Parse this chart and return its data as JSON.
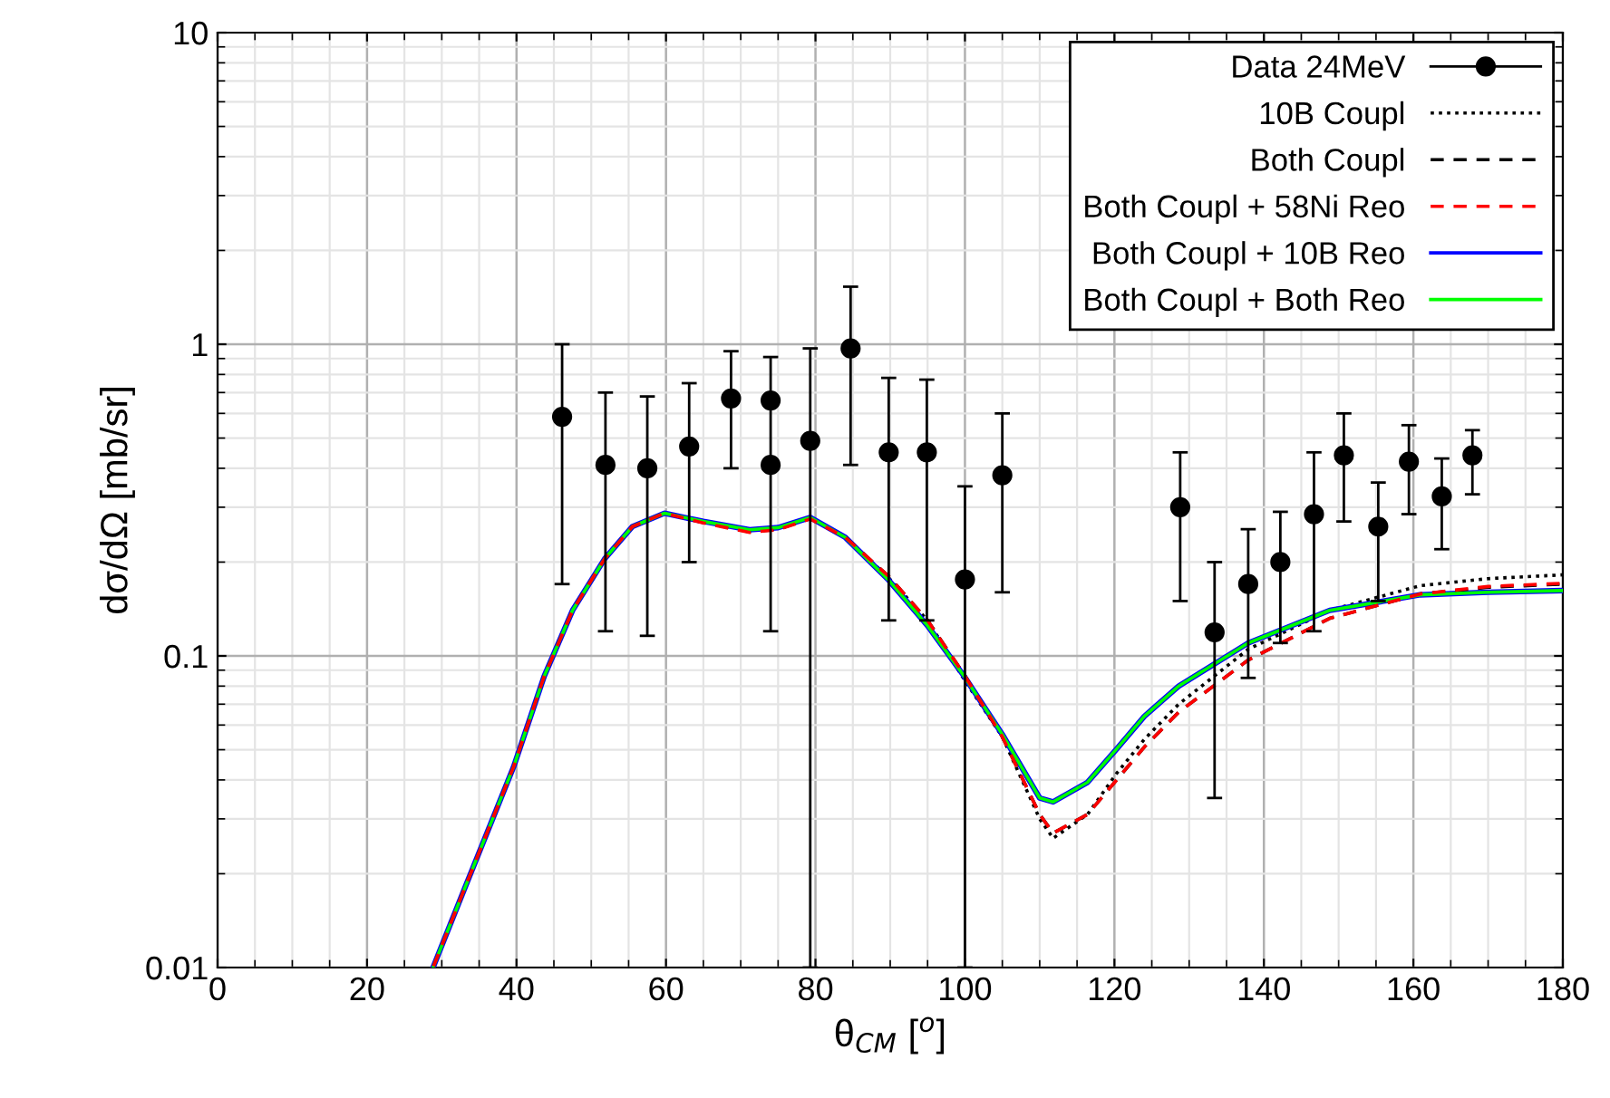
{
  "chart_data": {
    "type": "line",
    "xlabel": "θ$_{CM}$ [$^{o}$]",
    "ylabel": "dσ/dΩ [mb/sr]",
    "xlim": [
      0,
      180
    ],
    "xticks": [
      0,
      20,
      40,
      60,
      80,
      100,
      120,
      140,
      160,
      180
    ],
    "ylim": [
      0.01,
      10
    ],
    "yticks": [
      0.01,
      0.1,
      1,
      10
    ],
    "log": "y",
    "grid": true,
    "legend": "top right",
    "series": [
      {
        "name": "Data 24MeV",
        "type": "scatter",
        "marker": "circle",
        "color": "#000000",
        "x": [
          46.1,
          51.9,
          57.5,
          63.1,
          68.7,
          74.0,
          74.0,
          79.3,
          84.7,
          89.8,
          94.9,
          100.0,
          105.0,
          128.8,
          133.4,
          137.9,
          142.2,
          146.7,
          150.7,
          155.3,
          159.4,
          163.8,
          167.9
        ],
        "values": [
          0.585,
          0.41,
          0.4,
          0.47,
          0.67,
          0.66,
          0.41,
          0.49,
          0.97,
          0.45,
          0.45,
          0.176,
          0.38,
          0.3,
          0.119,
          0.17,
          0.2,
          0.285,
          0.44,
          0.26,
          0.42,
          0.325,
          0.44
        ],
        "errors": [
          [
            0.17,
            1.0
          ],
          [
            0.12,
            0.7
          ],
          [
            0.116,
            0.68
          ],
          [
            0.2,
            0.75
          ],
          [
            0.4,
            0.95
          ],
          [
            0.12,
            0.91
          ],
          null,
          [
            0.01,
            0.97
          ],
          [
            0.41,
            1.53
          ],
          [
            0.13,
            0.78
          ],
          [
            0.13,
            0.77
          ],
          [
            0.01,
            0.35
          ],
          [
            0.16,
            0.6
          ],
          [
            0.15,
            0.45
          ],
          [
            0.035,
            0.2
          ],
          [
            0.085,
            0.255
          ],
          [
            0.11,
            0.29
          ],
          [
            0.12,
            0.45
          ],
          [
            0.27,
            0.6
          ],
          [
            0.15,
            0.36
          ],
          [
            0.285,
            0.55
          ],
          [
            0.22,
            0.43
          ],
          [
            0.33,
            0.53
          ]
        ]
      },
      {
        "name": "10B Coupl",
        "line_style": "dotted",
        "color": "#000000",
        "x": [
          28.9,
          33,
          39.6,
          43.7,
          47.5,
          51.8,
          55.5,
          59.8,
          65,
          71.2,
          75,
          79.3,
          84,
          89.8,
          95,
          99.9,
          105,
          110,
          111.8,
          116.4,
          120.3,
          124,
          128.6,
          137.9,
          148.8,
          160.9,
          170,
          180
        ],
        "values": [
          0.0101,
          0.0178,
          0.044,
          0.086,
          0.14,
          0.205,
          0.26,
          0.287,
          0.27,
          0.254,
          0.258,
          0.278,
          0.24,
          0.178,
          0.13,
          0.084,
          0.055,
          0.03,
          0.026,
          0.031,
          0.042,
          0.054,
          0.07,
          0.105,
          0.14,
          0.168,
          0.177,
          0.182
        ]
      },
      {
        "name": "Both Coupl",
        "line_style": "dashed",
        "color": "#000000",
        "x": [
          28.9,
          33,
          39.6,
          43.7,
          47.5,
          51.8,
          55.5,
          59.8,
          65,
          71.2,
          75,
          79.3,
          84,
          89.8,
          95,
          99.9,
          105,
          110,
          111.8,
          116.4,
          120.3,
          124,
          128.6,
          137.9,
          148.8,
          160.9,
          170,
          180
        ],
        "values": [
          0.0101,
          0.0178,
          0.044,
          0.086,
          0.14,
          0.205,
          0.26,
          0.287,
          0.268,
          0.25,
          0.255,
          0.276,
          0.24,
          0.18,
          0.13,
          0.087,
          0.055,
          0.031,
          0.027,
          0.031,
          0.04,
          0.051,
          0.066,
          0.097,
          0.132,
          0.158,
          0.166,
          0.17
        ]
      },
      {
        "name": "Both Coupl + 58Ni Reo",
        "line_style": "dashed",
        "color": "#ff0000",
        "x": [
          28.9,
          33,
          39.6,
          43.7,
          47.5,
          51.8,
          55.5,
          59.8,
          65,
          71.2,
          75,
          79.3,
          84,
          89.8,
          95,
          99.9,
          105,
          110,
          111.8,
          116.4,
          120.3,
          124,
          128.6,
          137.9,
          148.8,
          160.9,
          170,
          180
        ],
        "values": [
          0.0101,
          0.0178,
          0.044,
          0.086,
          0.14,
          0.205,
          0.26,
          0.287,
          0.267,
          0.249,
          0.254,
          0.275,
          0.24,
          0.18,
          0.13,
          0.087,
          0.055,
          0.031,
          0.027,
          0.031,
          0.04,
          0.051,
          0.066,
          0.097,
          0.132,
          0.158,
          0.167,
          0.171
        ]
      },
      {
        "name": "Both Coupl + 10B Reo",
        "line_style": "solid",
        "color": "#0000ff",
        "x": [
          28.9,
          33,
          39.6,
          43.7,
          47.5,
          51.8,
          55.5,
          59.8,
          65,
          71.2,
          75,
          79.3,
          84,
          89.8,
          95,
          99.9,
          105,
          110,
          111.8,
          116.4,
          120.3,
          124,
          128.6,
          137.9,
          148.8,
          160.9,
          170,
          180
        ],
        "values": [
          0.0101,
          0.0178,
          0.044,
          0.086,
          0.14,
          0.205,
          0.26,
          0.287,
          0.27,
          0.254,
          0.258,
          0.278,
          0.24,
          0.175,
          0.125,
          0.086,
          0.056,
          0.035,
          0.034,
          0.0393,
          0.0503,
          0.064,
          0.08,
          0.11,
          0.14,
          0.157,
          0.16,
          0.162
        ]
      },
      {
        "name": "Both Coupl + Both Reo",
        "line_style": "solid",
        "color": "#00ff00",
        "x": [
          28.9,
          33,
          39.6,
          43.7,
          47.5,
          51.8,
          55.5,
          59.8,
          65,
          71.2,
          75,
          79.3,
          84,
          89.8,
          95,
          99.9,
          105,
          110,
          111.8,
          116.4,
          120.3,
          124,
          128.6,
          137.9,
          148.8,
          160.9,
          170,
          180
        ],
        "values": [
          0.0101,
          0.0178,
          0.044,
          0.086,
          0.14,
          0.205,
          0.26,
          0.287,
          0.27,
          0.254,
          0.258,
          0.278,
          0.24,
          0.175,
          0.125,
          0.086,
          0.056,
          0.035,
          0.034,
          0.0393,
          0.0503,
          0.064,
          0.08,
          0.11,
          0.14,
          0.157,
          0.16,
          0.162
        ]
      }
    ]
  }
}
